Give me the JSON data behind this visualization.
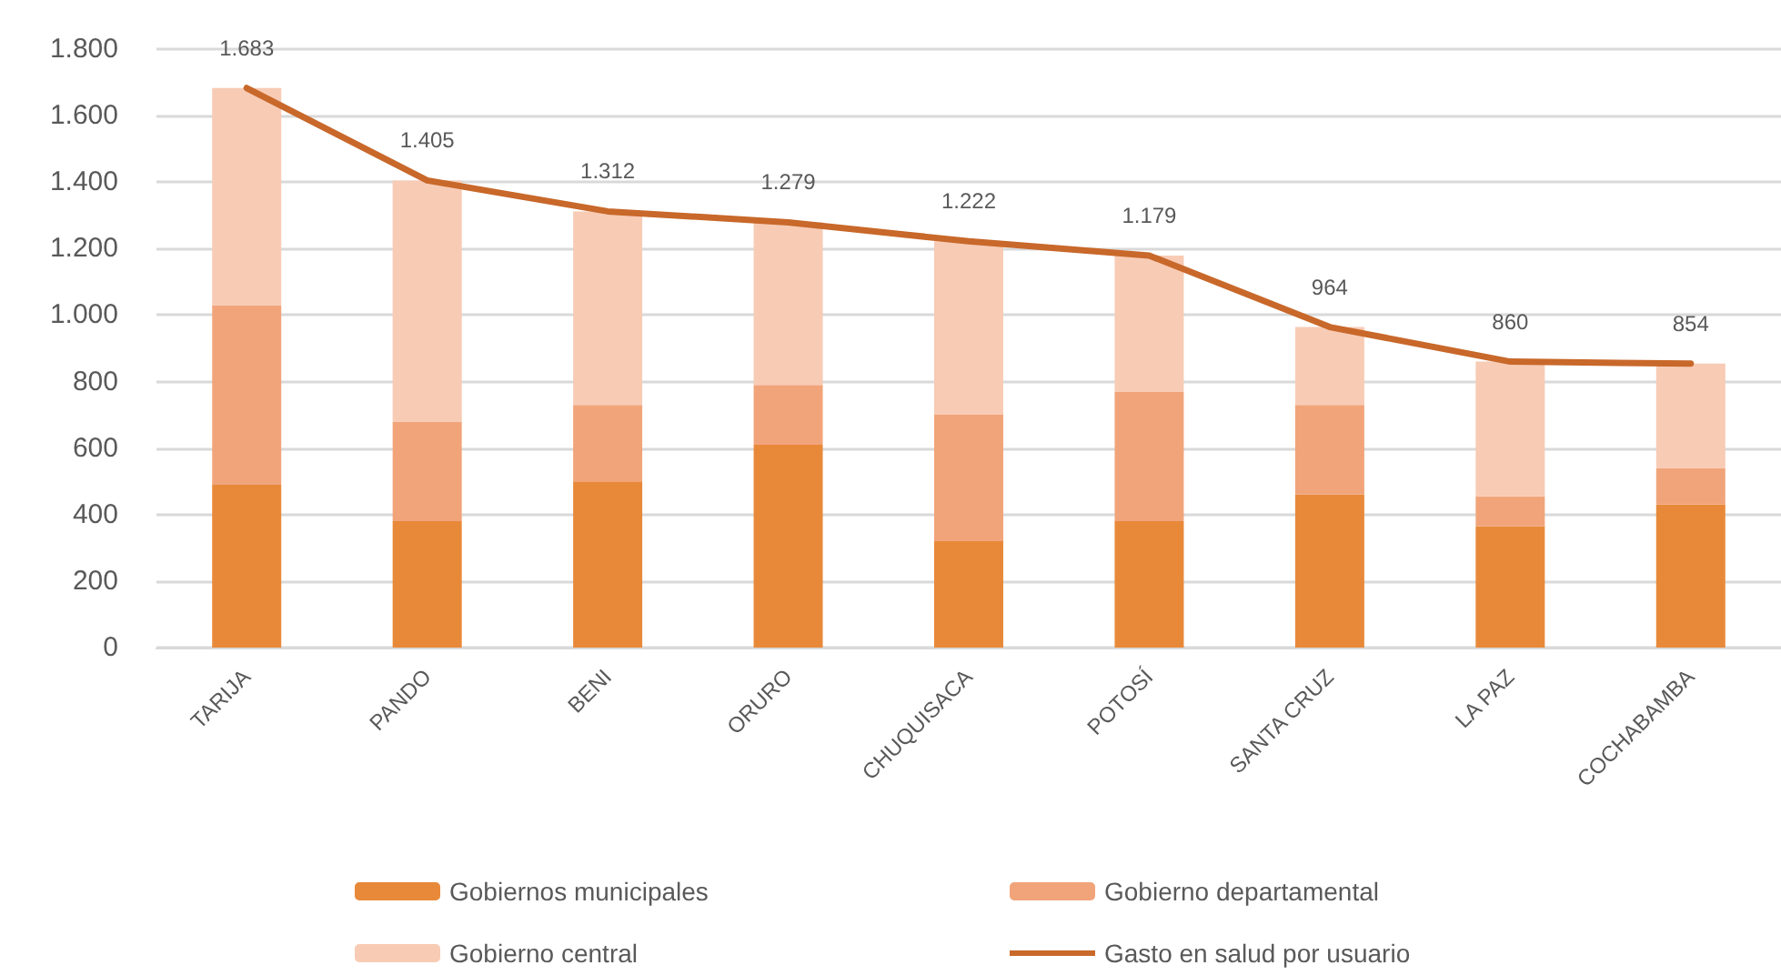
{
  "chart_data": {
    "type": "bar",
    "stacked": true,
    "categories": [
      "TARIJA",
      "PANDO",
      "BENI",
      "ORURO",
      "CHUQUISACA",
      "POTOSÍ",
      "SANTA CRUZ",
      "LA PAZ",
      "COCHABAMBA"
    ],
    "series": [
      {
        "name": "Gobiernos municipales",
        "color": "#e8893a",
        "values": [
          490,
          380,
          500,
          610,
          320,
          380,
          460,
          365,
          430
        ]
      },
      {
        "name": "Gobierno departamental",
        "color": "#f1a47a",
        "values": [
          540,
          300,
          230,
          180,
          380,
          390,
          270,
          90,
          110
        ]
      },
      {
        "name": "Gobierno central",
        "color": "#f8cbb5",
        "values": [
          653,
          725,
          582,
          489,
          522,
          409,
          234,
          405,
          314
        ]
      },
      {
        "name": "Gasto en salud por usuario",
        "type": "line",
        "color": "#c8682a",
        "values": [
          1683,
          1405,
          1312,
          1279,
          1222,
          1179,
          964,
          860,
          854
        ],
        "value_labels": [
          "1.683",
          "1.405",
          "1.312",
          "1.279",
          "1.222",
          "1.179",
          "964",
          "860",
          "854"
        ]
      }
    ],
    "ylim": [
      0,
      1800
    ],
    "yticks": [
      0,
      200,
      400,
      600,
      800,
      {
        "value": 1000,
        "label": "1.000"
      },
      {
        "value": 1200,
        "label": "1.200"
      },
      {
        "value": 1400,
        "label": "1.400"
      },
      {
        "value": 1600,
        "label": "1.600"
      },
      {
        "value": 1800,
        "label": "1.800"
      }
    ],
    "grid": "y",
    "legend": "bottom",
    "marker": "none",
    "line_style": "solid"
  }
}
